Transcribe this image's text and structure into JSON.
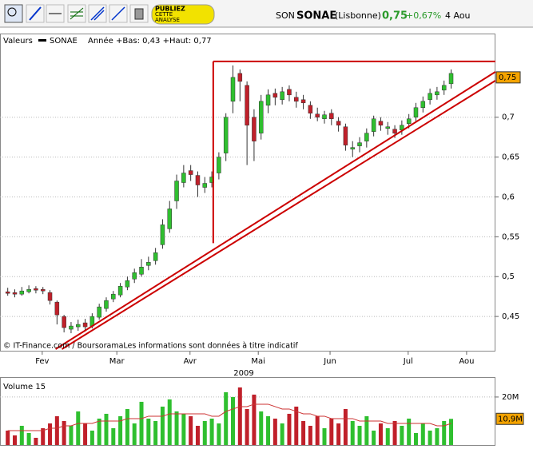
{
  "toolbar": {
    "ad": [
      "PUBLIEZ",
      "CETTE",
      "ANALYSE"
    ]
  },
  "header": {
    "prefix": "SON",
    "name": "SONAE",
    "market": "(Lisbonne)",
    "price": "0,75",
    "change": "+0,67%",
    "date": "4 Aou"
  },
  "chart_data": [
    {
      "type": "candlestick",
      "legend": [
        "Valeurs",
        "SONAE",
        "Année +Bas: 0,43 +Haut: 0,77"
      ],
      "footer": "© IT-Finance.com / BoursoramaLes informations sont données à titre indicatif",
      "x_label": "2009",
      "xlim": [
        -1.1,
        69.3
      ],
      "xticks": [
        {
          "value": 4.9,
          "label": "Fev"
        },
        {
          "value": 15.5,
          "label": "Mar"
        },
        {
          "value": 25.9,
          "label": "Avr"
        },
        {
          "value": 35.6,
          "label": "Mai"
        },
        {
          "value": 45.8,
          "label": "Jun"
        },
        {
          "value": 56.9,
          "label": "Jul"
        },
        {
          "value": 65.2,
          "label": "Aou"
        }
      ],
      "ylim": [
        0.406,
        0.805
      ],
      "yticks": [
        {
          "value": 0.45,
          "label": "0,45"
        },
        {
          "value": 0.5,
          "label": "0,5"
        },
        {
          "value": 0.55,
          "label": "0,55"
        },
        {
          "value": 0.6,
          "label": "0,6"
        },
        {
          "value": 0.65,
          "label": "0,65"
        },
        {
          "value": 0.7,
          "label": "0,7"
        }
      ],
      "grid": true,
      "last_label": {
        "value": 0.75,
        "label": "0,75"
      },
      "up_color": "#2fbf2f",
      "down_color": "#c0202a",
      "trend_color": "#cc0000",
      "open": [
        0.481,
        0.48,
        0.478,
        0.481,
        0.485,
        0.484,
        0.48,
        0.468,
        0.45,
        0.434,
        0.437,
        0.442,
        0.438,
        0.449,
        0.46,
        0.472,
        0.477,
        0.487,
        0.497,
        0.503,
        0.514,
        0.52,
        0.54,
        0.56,
        0.595,
        0.618,
        0.633,
        0.627,
        0.612,
        0.618,
        0.63,
        0.655,
        0.72,
        0.755,
        0.74,
        0.7,
        0.68,
        0.715,
        0.73,
        0.722,
        0.735,
        0.725,
        0.722,
        0.715,
        0.704,
        0.698,
        0.705,
        0.695,
        0.688,
        0.66,
        0.664,
        0.67,
        0.682,
        0.695,
        0.686,
        0.685,
        0.684,
        0.692,
        0.7,
        0.712,
        0.722,
        0.728,
        0.734,
        0.742
      ],
      "high": [
        0.486,
        0.484,
        0.487,
        0.489,
        0.488,
        0.487,
        0.483,
        0.47,
        0.452,
        0.443,
        0.446,
        0.447,
        0.454,
        0.466,
        0.474,
        0.482,
        0.492,
        0.5,
        0.51,
        0.522,
        0.525,
        0.536,
        0.572,
        0.595,
        0.628,
        0.64,
        0.64,
        0.632,
        0.625,
        0.632,
        0.656,
        0.705,
        0.765,
        0.76,
        0.745,
        0.71,
        0.728,
        0.735,
        0.736,
        0.738,
        0.74,
        0.732,
        0.728,
        0.72,
        0.712,
        0.708,
        0.71,
        0.7,
        0.692,
        0.67,
        0.675,
        0.686,
        0.702,
        0.7,
        0.694,
        0.69,
        0.696,
        0.704,
        0.718,
        0.726,
        0.736,
        0.738,
        0.746,
        0.76
      ],
      "low": [
        0.476,
        0.474,
        0.476,
        0.479,
        0.479,
        0.478,
        0.465,
        0.44,
        0.43,
        0.429,
        0.432,
        0.431,
        0.435,
        0.446,
        0.456,
        0.468,
        0.474,
        0.483,
        0.492,
        0.5,
        0.508,
        0.515,
        0.535,
        0.555,
        0.585,
        0.612,
        0.62,
        0.6,
        0.605,
        0.612,
        0.622,
        0.645,
        0.705,
        0.72,
        0.64,
        0.645,
        0.672,
        0.705,
        0.715,
        0.716,
        0.72,
        0.712,
        0.71,
        0.698,
        0.695,
        0.692,
        0.69,
        0.682,
        0.658,
        0.65,
        0.656,
        0.662,
        0.676,
        0.683,
        0.678,
        0.674,
        0.678,
        0.686,
        0.694,
        0.706,
        0.716,
        0.722,
        0.728,
        0.736
      ],
      "close": [
        0.479,
        0.478,
        0.482,
        0.484,
        0.483,
        0.482,
        0.47,
        0.452,
        0.436,
        0.438,
        0.44,
        0.437,
        0.45,
        0.462,
        0.47,
        0.478,
        0.488,
        0.495,
        0.505,
        0.512,
        0.518,
        0.53,
        0.565,
        0.585,
        0.62,
        0.63,
        0.628,
        0.615,
        0.617,
        0.625,
        0.65,
        0.7,
        0.75,
        0.745,
        0.69,
        0.67,
        0.72,
        0.728,
        0.725,
        0.732,
        0.728,
        0.72,
        0.718,
        0.705,
        0.7,
        0.703,
        0.698,
        0.69,
        0.665,
        0.662,
        0.668,
        0.68,
        0.698,
        0.69,
        0.688,
        0.68,
        0.69,
        0.698,
        0.712,
        0.72,
        0.73,
        0.732,
        0.74,
        0.755
      ],
      "trendlines": [
        {
          "x": [
            29.2,
            69.3
          ],
          "y": [
            0.77,
            0.77
          ]
        },
        {
          "x": [
            29.2,
            29.2
          ],
          "y": [
            0.542,
            0.77
          ]
        },
        {
          "x": [
            6.8,
            69.3
          ],
          "y": [
            0.409,
            0.757
          ]
        },
        {
          "x": [
            7.7,
            69.3
          ],
          "y": [
            0.409,
            0.746
          ]
        }
      ]
    },
    {
      "type": "volume",
      "title": "Volume 15",
      "xlim": [
        -1.1,
        69.3
      ],
      "ylim": [
        0,
        28.3
      ],
      "yticks": [
        {
          "value": 20,
          "label": "20M"
        }
      ],
      "last_label": {
        "value": 10.9,
        "label": "10,9M"
      },
      "ma_color": "#cc3333",
      "values": [
        6,
        4,
        8,
        5,
        3,
        7,
        9,
        12,
        10,
        8,
        14,
        9,
        6,
        11,
        13,
        7,
        12,
        15,
        9,
        18,
        11,
        10,
        16,
        19,
        14,
        13,
        12,
        8,
        10,
        11,
        9,
        22,
        20,
        24,
        15,
        21,
        14,
        12,
        11,
        9,
        13,
        16,
        10,
        8,
        12,
        7,
        11,
        9,
        15,
        10,
        8,
        12,
        6,
        9,
        7,
        10,
        8,
        11,
        5,
        9,
        6,
        7,
        10,
        10.9
      ],
      "ma": [
        6,
        6,
        6,
        6,
        6,
        6,
        7,
        7,
        8,
        8,
        9,
        9,
        9,
        10,
        10,
        10,
        10,
        11,
        11,
        11,
        12,
        12,
        12,
        13,
        13,
        13,
        13,
        13,
        13,
        12,
        12,
        14,
        15,
        16,
        16,
        17,
        17,
        17,
        16,
        15,
        15,
        14,
        13,
        13,
        12,
        12,
        11,
        11,
        11,
        11,
        10,
        10,
        10,
        10,
        9,
        9,
        9,
        9,
        9,
        9,
        9,
        8,
        8,
        9
      ]
    }
  ]
}
